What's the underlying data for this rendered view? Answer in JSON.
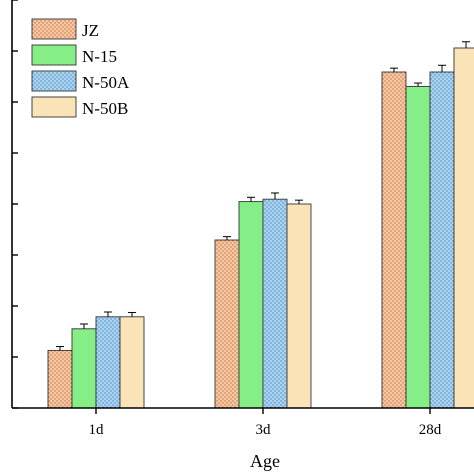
{
  "chart_data": {
    "type": "bar",
    "categories": [
      "1d",
      "3d",
      "28d"
    ],
    "series": [
      {
        "name": "JZ",
        "values": [
          12.0,
          35.0,
          70.0
        ],
        "errors": [
          0.8,
          0.7,
          0.8
        ],
        "color": "#f6c7a2",
        "pattern": "dots"
      },
      {
        "name": "N-15",
        "values": [
          16.5,
          43.0,
          67.0
        ],
        "errors": [
          1.0,
          0.9,
          0.7
        ],
        "color": "#86ee86",
        "pattern": "solid"
      },
      {
        "name": "N-50A",
        "values": [
          19.0,
          43.5,
          70.0
        ],
        "errors": [
          1.0,
          1.3,
          1.4
        ],
        "color": "#a9d4f3",
        "pattern": "dots"
      },
      {
        "name": "N-50B",
        "values": [
          19.0,
          42.5,
          75.0
        ],
        "errors": [
          0.9,
          0.8,
          1.3
        ],
        "color": "#fbe3b8",
        "pattern": "solid"
      }
    ],
    "xlabel": "Age",
    "ylabel": "",
    "ylim": [
      0,
      85
    ],
    "yticks_count": 9,
    "grid": false,
    "legend": "top-left"
  }
}
